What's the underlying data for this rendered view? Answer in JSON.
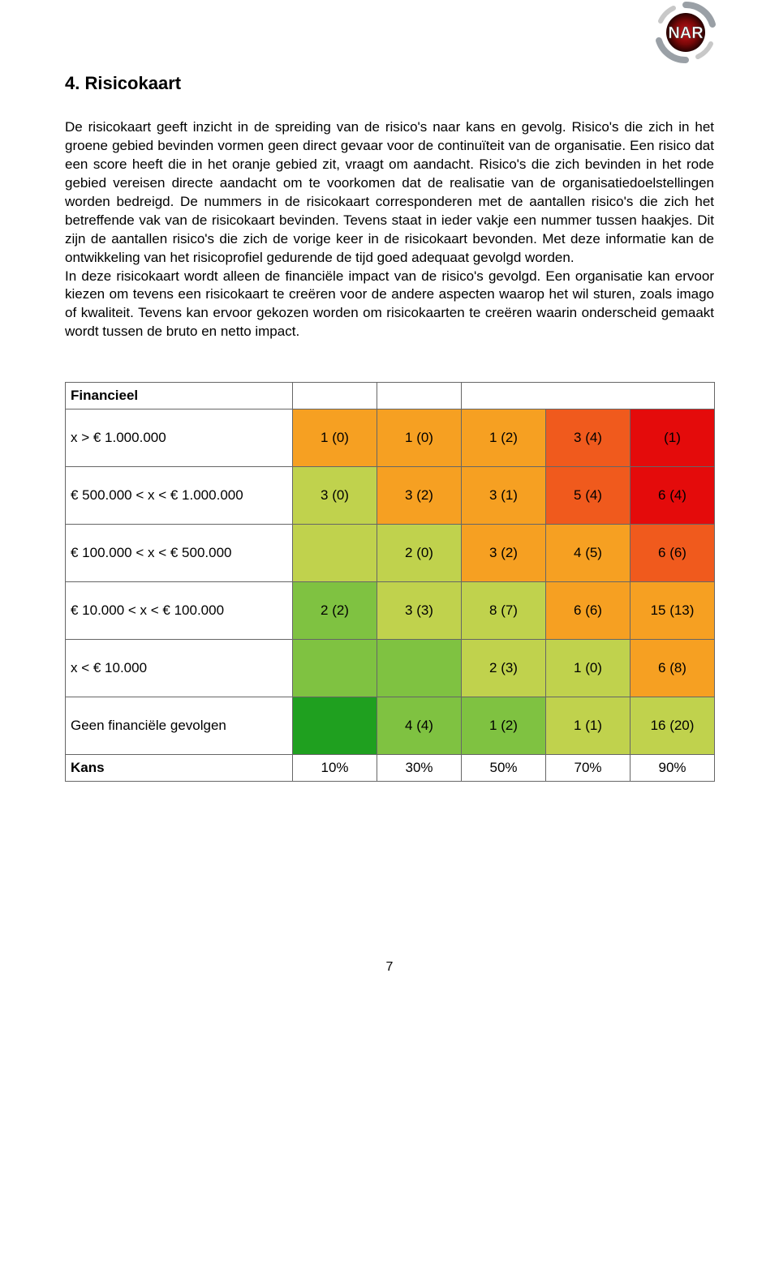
{
  "logo": {
    "text": "NAR",
    "ring_color": "#9aa0a6",
    "core_color": "#c8141b",
    "core_gradient_dark": "#100000",
    "text_color": "#ffffff"
  },
  "heading": "4. Risicokaart",
  "body": "De risicokaart geeft inzicht in de spreiding van de risico's naar kans en gevolg. Risico's die zich in het groene gebied bevinden vormen geen direct gevaar voor de continuïteit van de organisatie. Een risico dat een score heeft die in het oranje gebied zit, vraagt om aandacht. Risico's die zich bevinden in het rode gebied vereisen directe aandacht om te voorkomen dat de realisatie van de organisatiedoelstellingen worden bedreigd. De nummers in de risicokaart corresponderen met de aantallen risico's die zich het betreffende vak van de risicokaart bevinden. Tevens staat in ieder vakje een nummer tussen haakjes. Dit zijn de aantallen risico's die zich de vorige keer in de risicokaart bevonden. Met deze informatie kan de ontwikkeling van het risicoprofiel gedurende de tijd goed adequaat gevolgd worden.\nIn deze risicokaart wordt alleen de financiële impact van de risico's gevolgd. Een organisatie kan ervoor kiezen om tevens een risicokaart te creëren voor de andere aspecten waarop het wil sturen, zoals imago of kwaliteit. Tevens kan ervoor gekozen worden om risicokaarten te creëren waarin onderscheid gemaakt wordt tussen de bruto en netto impact.",
  "table": {
    "title": "Financieel",
    "row_labels": [
      "x > € 1.000.000",
      "€ 500.000 < x < € 1.000.000",
      "€ 100.000 < x < € 500.000",
      "€ 10.000 < x < € 100.000",
      "x < € 10.000",
      "Geen financiële gevolgen"
    ],
    "footer_label": "Kans",
    "footer_values": [
      "10%",
      "30%",
      "50%",
      "70%",
      "90%"
    ],
    "cells": [
      [
        {
          "v": "1 (0)",
          "c": "#f6a022"
        },
        {
          "v": "1 (0)",
          "c": "#f6a022"
        },
        {
          "v": "1 (2)",
          "c": "#f6a022"
        },
        {
          "v": "3 (4)",
          "c": "#f05a1d"
        },
        {
          "v": "(1)",
          "c": "#e40b0b"
        }
      ],
      [
        {
          "v": "3 (0)",
          "c": "#c0d24d"
        },
        {
          "v": "3 (2)",
          "c": "#f6a022"
        },
        {
          "v": "3 (1)",
          "c": "#f6a022"
        },
        {
          "v": "5 (4)",
          "c": "#f05a1d"
        },
        {
          "v": "6 (4)",
          "c": "#e40b0b"
        }
      ],
      [
        {
          "v": "",
          "c": "#c0d24d"
        },
        {
          "v": "2 (0)",
          "c": "#c0d24d"
        },
        {
          "v": "3 (2)",
          "c": "#f6a022"
        },
        {
          "v": "4 (5)",
          "c": "#f6a022"
        },
        {
          "v": "6 (6)",
          "c": "#f05a1d"
        }
      ],
      [
        {
          "v": "2 (2)",
          "c": "#7fc241"
        },
        {
          "v": "3 (3)",
          "c": "#c0d24d"
        },
        {
          "v": "8 (7)",
          "c": "#c0d24d"
        },
        {
          "v": "6 (6)",
          "c": "#f6a022"
        },
        {
          "v": "15 (13)",
          "c": "#f6a022"
        }
      ],
      [
        {
          "v": "",
          "c": "#7fc241"
        },
        {
          "v": "",
          "c": "#7fc241"
        },
        {
          "v": "2 (3)",
          "c": "#c0d24d"
        },
        {
          "v": "1 (0)",
          "c": "#c0d24d"
        },
        {
          "v": "6 (8)",
          "c": "#f6a022"
        }
      ],
      [
        {
          "v": "",
          "c": "#1fa01f"
        },
        {
          "v": "4 (4)",
          "c": "#7fc241"
        },
        {
          "v": "1 (2)",
          "c": "#7fc241"
        },
        {
          "v": "1 (1)",
          "c": "#c0d24d"
        },
        {
          "v": "16 (20)",
          "c": "#c0d24d"
        }
      ]
    ]
  },
  "page_number": "7"
}
